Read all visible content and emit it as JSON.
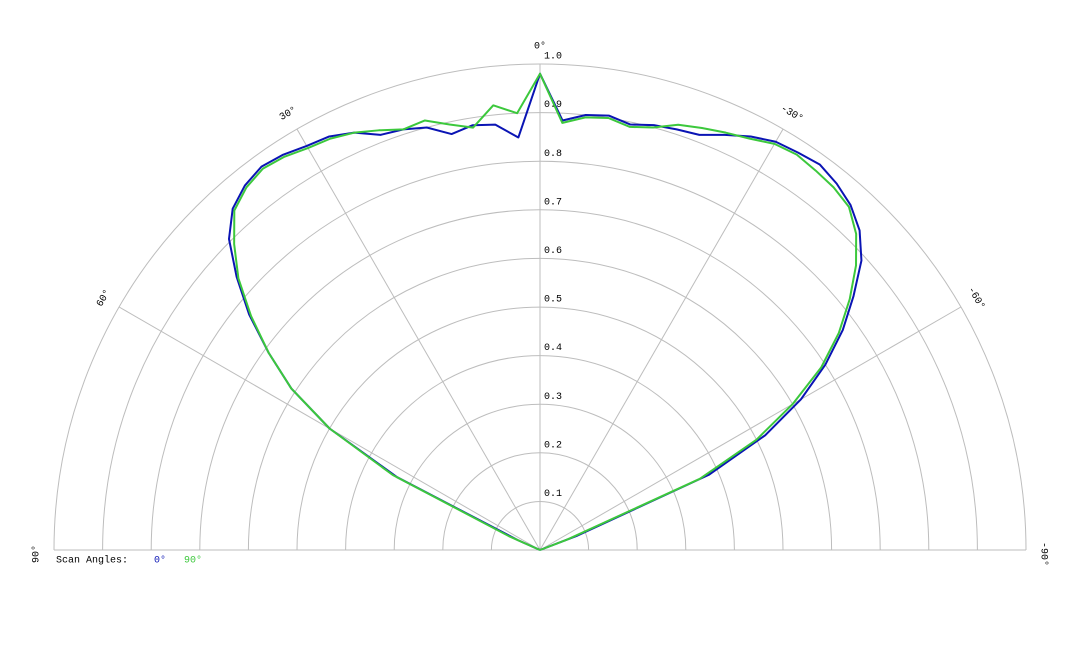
{
  "chart_data": {
    "type": "polar",
    "x": [
      -90,
      -87,
      -84,
      -81,
      -78,
      -75,
      -72,
      -69,
      -66,
      -63,
      -60,
      -57,
      -54,
      -51,
      -48,
      -45,
      -42,
      -39,
      -36,
      -33,
      -30,
      -27,
      -24,
      -21,
      -18,
      -15,
      -12,
      -9,
      -6,
      -3,
      0,
      3,
      6,
      9,
      12,
      15,
      18,
      21,
      24,
      27,
      30,
      33,
      36,
      39,
      42,
      45,
      48,
      51,
      54,
      57,
      60,
      63,
      66,
      69,
      72,
      75,
      78,
      81,
      84,
      87,
      90
    ],
    "series": [
      {
        "name": "0°",
        "color": "#0a14b4",
        "values": [
          0,
          0,
          0,
          0,
          0,
          0,
          0,
          0.08,
          0.38,
          0.52,
          0.62,
          0.7,
          0.77,
          0.83,
          0.89,
          0.93,
          0.955,
          0.97,
          0.98,
          0.975,
          0.97,
          0.955,
          0.935,
          0.915,
          0.91,
          0.905,
          0.895,
          0.905,
          0.9,
          0.885,
          0.98,
          0.85,
          0.88,
          0.885,
          0.875,
          0.9,
          0.91,
          0.915,
          0.94,
          0.955,
          0.96,
          0.97,
          0.975,
          0.965,
          0.945,
          0.905,
          0.84,
          0.77,
          0.69,
          0.61,
          0.5,
          0.33,
          0.05,
          0,
          0,
          0,
          0,
          0,
          0,
          0,
          0
        ]
      },
      {
        "name": "90°",
        "color": "#3cc83c",
        "values": [
          0,
          0,
          0,
          0,
          0,
          0,
          0,
          0.06,
          0.36,
          0.5,
          0.6,
          0.69,
          0.76,
          0.82,
          0.875,
          0.92,
          0.95,
          0.96,
          0.965,
          0.97,
          0.965,
          0.95,
          0.94,
          0.93,
          0.92,
          0.9,
          0.89,
          0.9,
          0.895,
          0.88,
          0.98,
          0.9,
          0.92,
          0.88,
          0.895,
          0.915,
          0.91,
          0.925,
          0.94,
          0.95,
          0.955,
          0.965,
          0.97,
          0.96,
          0.94,
          0.89,
          0.835,
          0.765,
          0.69,
          0.61,
          0.5,
          0.34,
          0.07,
          0,
          0,
          0,
          0,
          0,
          0,
          0,
          0
        ]
      }
    ],
    "rlim": [
      0,
      1
    ],
    "rticks": [
      0.1,
      0.2,
      0.3,
      0.4,
      0.5,
      0.6,
      0.7,
      0.8,
      0.9,
      {
        "value": 1,
        "label": "1.0"
      }
    ],
    "xticks": [
      {
        "value": 90,
        "label": "90°"
      },
      {
        "value": 60,
        "label": "60°"
      },
      {
        "value": 30,
        "label": "30°"
      },
      {
        "value": 0,
        "label": "0°"
      },
      {
        "value": -30,
        "label": "-30°"
      },
      {
        "value": -60,
        "label": "-60°"
      },
      {
        "value": -90,
        "label": "-90°"
      }
    ],
    "legend_title": "Scan Angles:",
    "grid": true
  }
}
